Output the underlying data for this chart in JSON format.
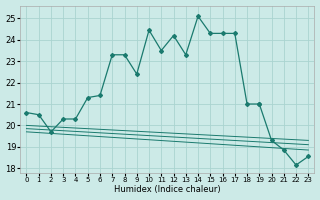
{
  "xlabel": "Humidex (Indice chaleur)",
  "background_color": "#cceae7",
  "grid_color": "#aad4d0",
  "line_color": "#1a7a6e",
  "xlim": [
    -0.5,
    23.5
  ],
  "ylim": [
    17.8,
    25.6
  ],
  "yticks": [
    18,
    19,
    20,
    21,
    22,
    23,
    24,
    25
  ],
  "xticks": [
    0,
    1,
    2,
    3,
    4,
    5,
    6,
    7,
    8,
    9,
    10,
    11,
    12,
    13,
    14,
    15,
    16,
    17,
    18,
    19,
    20,
    21,
    22,
    23
  ],
  "main_line_x": [
    0,
    1,
    2,
    3,
    4,
    5,
    6,
    7,
    8,
    9,
    10,
    11,
    12,
    13,
    14,
    15,
    16,
    17,
    18,
    19
  ],
  "main_line_y": [
    20.6,
    20.5,
    19.7,
    20.3,
    20.3,
    21.3,
    21.4,
    23.3,
    23.3,
    22.4,
    24.45,
    23.5,
    24.2,
    23.3,
    25.1,
    24.3,
    24.3,
    24.3,
    21.0,
    21.0
  ],
  "end_segment_x": [
    19,
    20,
    21,
    22,
    23
  ],
  "end_segment_y": [
    21.0,
    19.3,
    18.85,
    18.15,
    18.55
  ],
  "flat_lines": [
    {
      "x": [
        0,
        23
      ],
      "y": [
        20.0,
        19.3
      ]
    },
    {
      "x": [
        0,
        23
      ],
      "y": [
        19.85,
        19.1
      ]
    },
    {
      "x": [
        0,
        23
      ],
      "y": [
        19.7,
        18.85
      ]
    }
  ]
}
